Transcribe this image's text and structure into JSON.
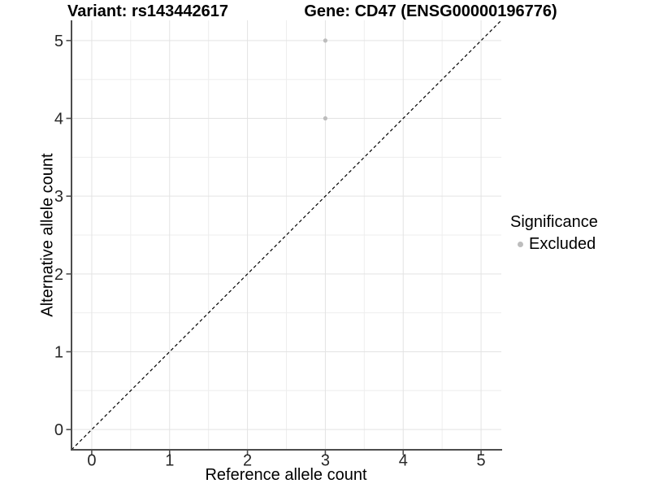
{
  "chart_data": {
    "type": "scatter",
    "titles": {
      "left": "Variant: rs143442617",
      "right": "Gene: CD47 (ENSG00000196776)"
    },
    "xlabel": "Reference allele count",
    "ylabel": "Alternative allele count",
    "xlim": [
      -0.26,
      5.26
    ],
    "ylim": [
      -0.26,
      5.26
    ],
    "xticks": [
      0,
      1,
      2,
      3,
      4,
      5
    ],
    "yticks": [
      0,
      1,
      2,
      3,
      4,
      5
    ],
    "minor_x": [
      0.5,
      1.5,
      2.5,
      3.5,
      4.5
    ],
    "minor_y": [
      0.5,
      1.5,
      2.5,
      3.5,
      4.5
    ],
    "grid": true,
    "legend": {
      "title": "Significance",
      "position": "right"
    },
    "series": [
      {
        "name": "Excluded",
        "color": "#bdbdbd",
        "points": [
          [
            3,
            4
          ],
          [
            3,
            5
          ]
        ],
        "point_radius": 2.6
      }
    ],
    "identity_line": {
      "style": "dashed",
      "color": "#000000",
      "equation": "y = x"
    },
    "colors": {
      "background": "#ffffff",
      "grid_major": "#e3e3e3",
      "grid_minor": "#eeeeee",
      "axis_line": "#4d4d4d",
      "tick_label": "#262626"
    }
  }
}
